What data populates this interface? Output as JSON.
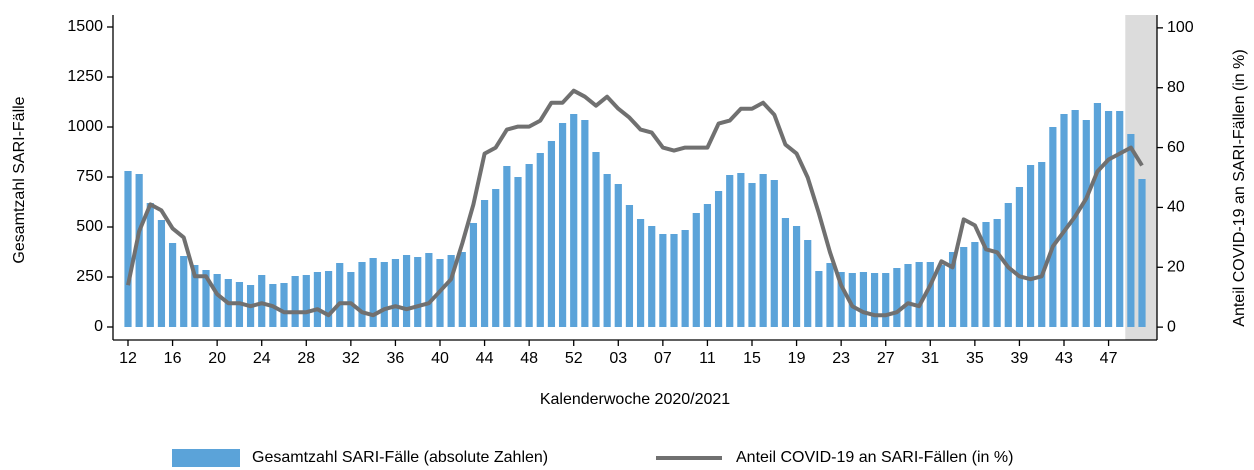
{
  "chart_data": {
    "type": "bar",
    "x_label": "Kalenderwoche 2020/2021",
    "y_label": "Gesamtzahl SARI-Fälle",
    "y2_label": "Anteil COVID-19 an SARI-Fällen (in %)",
    "categories": [
      "12",
      null,
      null,
      null,
      "16",
      null,
      null,
      null,
      "20",
      null,
      null,
      null,
      "24",
      null,
      null,
      null,
      "28",
      null,
      null,
      null,
      "32",
      null,
      null,
      null,
      "36",
      null,
      null,
      null,
      "40",
      null,
      null,
      null,
      "44",
      null,
      null,
      null,
      "48",
      null,
      null,
      null,
      "52",
      null,
      null,
      null,
      "03",
      null,
      null,
      null,
      "07",
      null,
      null,
      null,
      "11",
      null,
      null,
      null,
      "15",
      null,
      null,
      null,
      "19",
      null,
      null,
      null,
      "23",
      null,
      null,
      null,
      "27",
      null,
      null,
      null,
      "31",
      null,
      null,
      null,
      "35",
      null,
      null,
      null,
      "39",
      null,
      null,
      null,
      "43",
      null,
      null,
      null,
      "47",
      null,
      null,
      null
    ],
    "series": [
      {
        "name": "Gesamtzahl SARI-Fälle (absolute Zahlen)",
        "type": "bar",
        "color": "#5ba3d9",
        "values": [
          780,
          765,
          620,
          535,
          420,
          355,
          310,
          285,
          265,
          240,
          225,
          210,
          260,
          215,
          220,
          255,
          260,
          275,
          280,
          320,
          275,
          325,
          345,
          325,
          340,
          360,
          350,
          370,
          340,
          360,
          375,
          520,
          635,
          690,
          805,
          750,
          815,
          870,
          930,
          1020,
          1065,
          1035,
          875,
          765,
          715,
          610,
          540,
          505,
          465,
          465,
          485,
          570,
          615,
          680,
          760,
          770,
          720,
          765,
          735,
          545,
          505,
          435,
          280,
          320,
          275,
          270,
          275,
          270,
          270,
          295,
          315,
          325,
          325,
          310,
          375,
          400,
          425,
          525,
          540,
          620,
          700,
          810,
          825,
          1000,
          1065,
          1085,
          1035,
          1120,
          1080,
          1080,
          965,
          740
        ]
      },
      {
        "name": "Anteil COVID-19 an SARI-Fällen (in %)",
        "type": "line",
        "axis": "y2",
        "color": "#707070",
        "values": [
          14,
          32,
          41,
          39,
          33,
          30,
          17,
          17,
          11,
          8,
          8,
          7,
          8,
          7,
          5,
          5,
          5,
          6,
          4,
          8,
          8,
          5,
          4,
          6,
          7,
          6,
          7,
          8,
          12,
          16,
          28,
          41,
          58,
          60,
          66,
          67,
          67,
          69,
          75,
          75,
          79,
          77,
          74,
          77,
          73,
          70,
          66,
          65,
          60,
          59,
          60,
          60,
          60,
          68,
          69,
          73,
          73,
          75,
          71,
          61,
          58,
          50,
          38,
          25,
          14,
          7,
          5,
          4,
          4,
          5,
          8,
          7,
          14,
          22,
          20,
          36,
          34,
          26,
          25,
          20,
          17,
          16,
          17,
          27,
          32,
          37,
          43,
          52,
          56,
          58,
          60,
          54
        ]
      }
    ],
    "ylim": [
      -65,
      1560
    ],
    "yticks": [
      0,
      250,
      500,
      750,
      1000,
      1250,
      1500
    ],
    "y2lim": [
      -4.3,
      104.3
    ],
    "y2ticks": [
      0,
      20,
      40,
      60,
      80,
      100
    ],
    "legend": "bottom"
  }
}
